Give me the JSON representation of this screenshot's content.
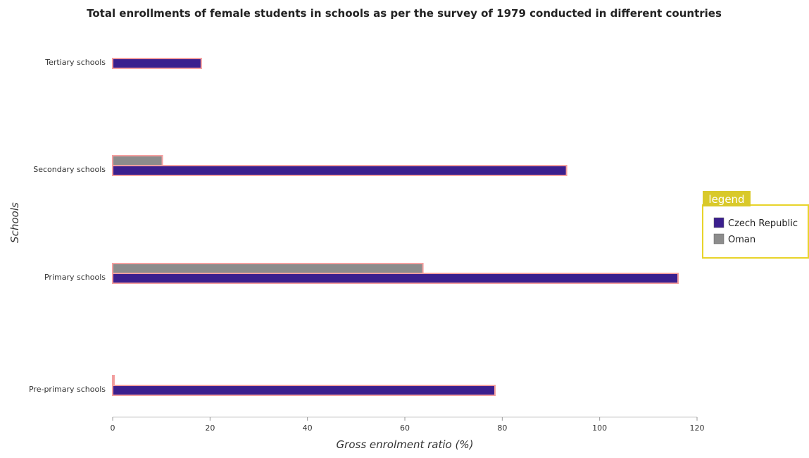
{
  "chart_data": {
    "type": "bar",
    "orientation": "horizontal",
    "title": "Total enrollments of female students in schools as per the survey of 1979 conducted in different countries",
    "xlabel": "Gross enrolment ratio (%)",
    "ylabel": "Schools",
    "xlim": [
      0,
      120
    ],
    "xticks": [
      0,
      20,
      40,
      60,
      80,
      100,
      120
    ],
    "categories": [
      "Pre-primary schools",
      "Primary schools",
      "Secondary schools",
      "Tertiary schools"
    ],
    "series": [
      {
        "name": "Czech Republic",
        "color": "#3b1f8e",
        "values": [
          78.5,
          116.1,
          93.2,
          18.2
        ]
      },
      {
        "name": "Oman",
        "color": "#8c8c8c",
        "values": [
          0.3,
          63.7,
          10.2,
          0
        ]
      }
    ],
    "legend": {
      "title": "legend",
      "position": "right"
    },
    "grid": false
  }
}
